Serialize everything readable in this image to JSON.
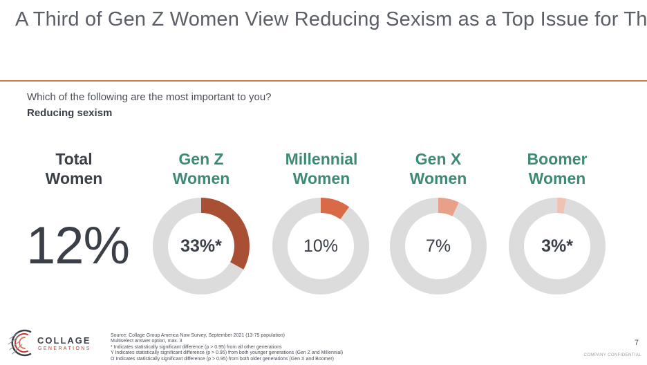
{
  "title": "A Third of Gen Z Women View Reducing Sexism as a Top Issue for Them",
  "question": "Which of the following are the most important to you?",
  "subquestion": "Reducing sexism",
  "total": {
    "line1": "Total",
    "line2": "Women",
    "value_label": "12%",
    "value": 12
  },
  "chart_data": {
    "type": "pie",
    "variant": "donut",
    "title": "",
    "categories": [
      "Gen Z Women",
      "Millennial Women",
      "Gen X Women",
      "Boomer Women"
    ],
    "values": [
      33,
      10,
      7,
      3
    ],
    "labels": [
      "33%*",
      "10%",
      "7%",
      "3%*"
    ],
    "colors": [
      "#a94f33",
      "#d96a48",
      "#e8a08a",
      "#f0c2b4"
    ],
    "track_color": "#dcdcdc",
    "emphasized": [
      true,
      false,
      false,
      true
    ]
  },
  "groups": [
    {
      "line1": "Gen Z",
      "line2": "Women"
    },
    {
      "line1": "Millennial",
      "line2": "Women"
    },
    {
      "line1": "Gen X",
      "line2": "Women"
    },
    {
      "line1": "Boomer",
      "line2": "Women"
    }
  ],
  "logo": {
    "line1": "COLLAGE",
    "line2": "GENERATIONS"
  },
  "footnotes": {
    "source": "Source: Collage Group America Now Survey, September 2021 (13-75 population)",
    "multiselect": "Multiselect answer option, max. 3",
    "note1": "* Indicates statistically significant difference (p > 0.95) from all other generations",
    "note2": "Y Indicates statistically significant difference (p > 0.95) from both younger generations (Gen Z and Millennial)",
    "note3": "O Indicates statistically significant difference (p > 0.95) from both older generations (Gen X and Boomer)"
  },
  "page_number": "7",
  "confidential": "COMPANY CONFIDENTIAL"
}
